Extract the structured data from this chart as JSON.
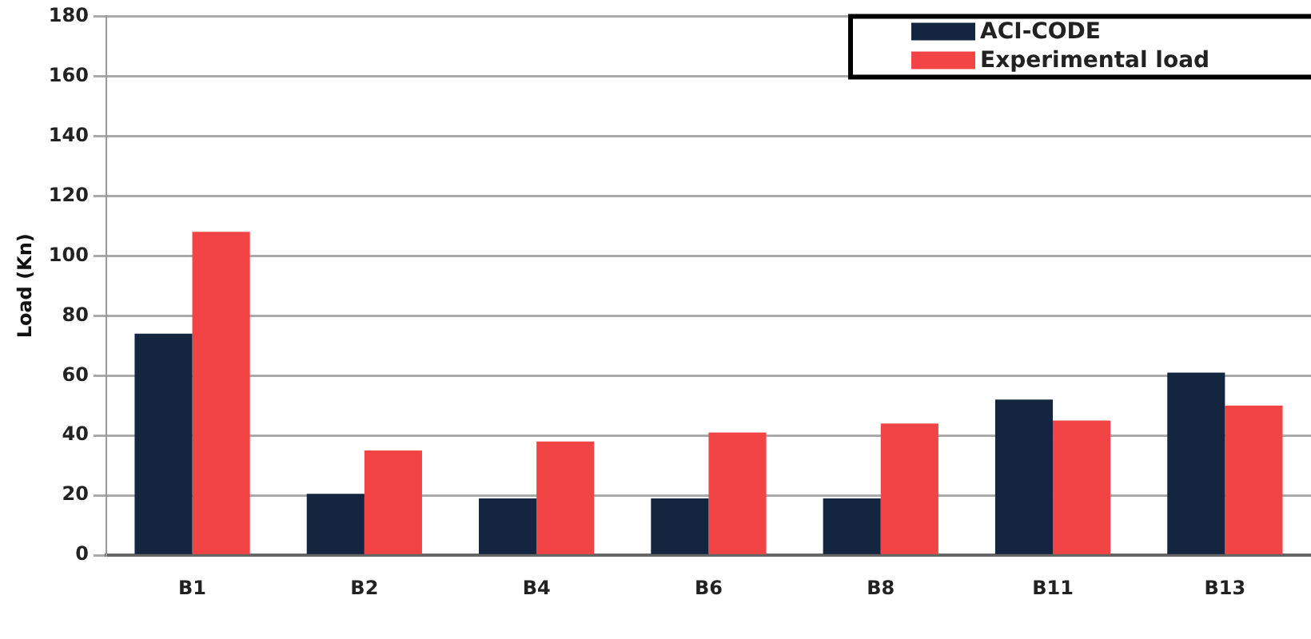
{
  "chart_data": {
    "type": "bar",
    "ylabel": "Load (Kn)",
    "categories": [
      "B1",
      "B2",
      "B4",
      "B6",
      "B8",
      "B11",
      "B13"
    ],
    "series": [
      {
        "name": "ACI-CODE",
        "color": "#13253f",
        "values": [
          74,
          20.5,
          19,
          19,
          19,
          52,
          61
        ]
      },
      {
        "name": "Experimental load",
        "color": "#f24444",
        "values": [
          108,
          35,
          38,
          41,
          44,
          45,
          50
        ]
      }
    ],
    "ylim": [
      0,
      180
    ],
    "yticks": [
      0,
      20,
      40,
      60,
      80,
      100,
      120,
      140,
      160,
      180
    ],
    "grid": "y",
    "legend": "top right"
  }
}
